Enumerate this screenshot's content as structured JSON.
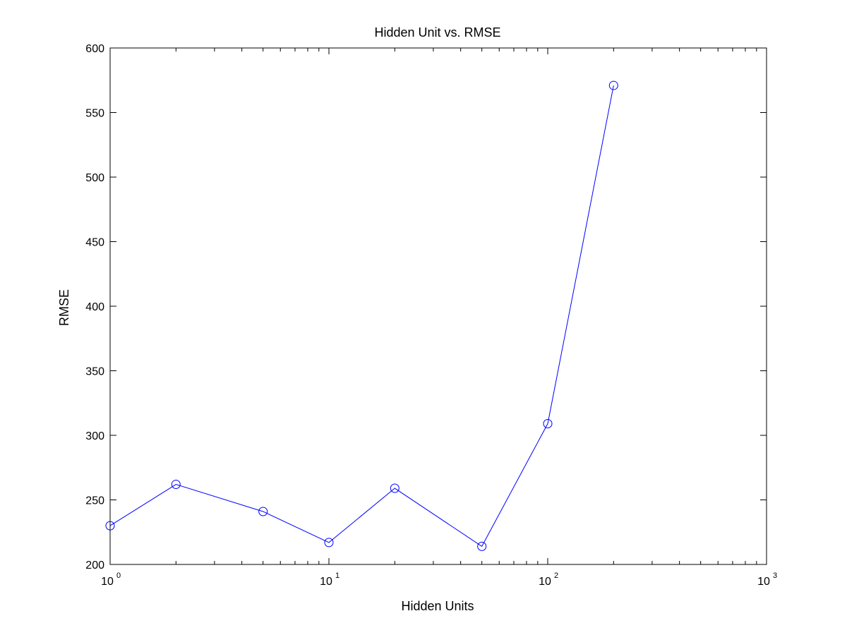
{
  "chart_data": {
    "type": "line",
    "title": "Hidden Unit vs. RMSE",
    "xlabel": "Hidden Units",
    "ylabel": "RMSE",
    "xscale": "log",
    "xlim": [
      1,
      1000
    ],
    "ylim": [
      200,
      600
    ],
    "grid": false,
    "legend": "none",
    "x_ticks": [
      {
        "base": "10",
        "exp": "0"
      },
      {
        "base": "10",
        "exp": "1"
      },
      {
        "base": "10",
        "exp": "2"
      },
      {
        "base": "10",
        "exp": "3"
      }
    ],
    "y_ticks": [
      "200",
      "250",
      "300",
      "350",
      "400",
      "450",
      "500",
      "550",
      "600"
    ],
    "series": [
      {
        "color": "#0000ff",
        "marker": "circle",
        "x": [
          1,
          2,
          5,
          10,
          20,
          50,
          100,
          200
        ],
        "y": [
          230,
          262,
          241,
          217,
          259,
          214,
          309,
          571
        ]
      }
    ]
  }
}
